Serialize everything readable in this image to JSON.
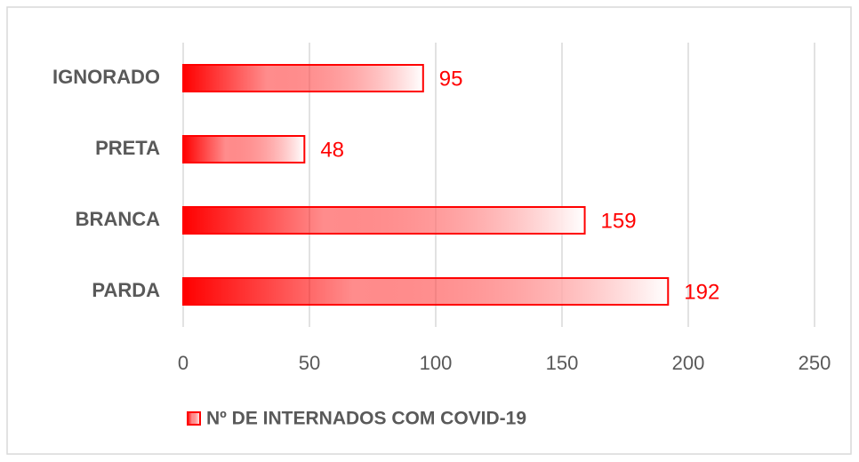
{
  "chart_data": {
    "type": "bar",
    "orientation": "horizontal",
    "categories": [
      "IGNORADO",
      "PRETA",
      "BRANCA",
      "PARDA"
    ],
    "series": [
      {
        "name": "Nº DE INTERNADOS COM COVID-19",
        "color": "#ff0000",
        "values": [
          95,
          48,
          159,
          192
        ]
      }
    ],
    "xlim": [
      0,
      250
    ],
    "xticks": [
      0,
      50,
      100,
      150,
      200,
      250
    ],
    "grid": true,
    "legend": "bottom"
  }
}
